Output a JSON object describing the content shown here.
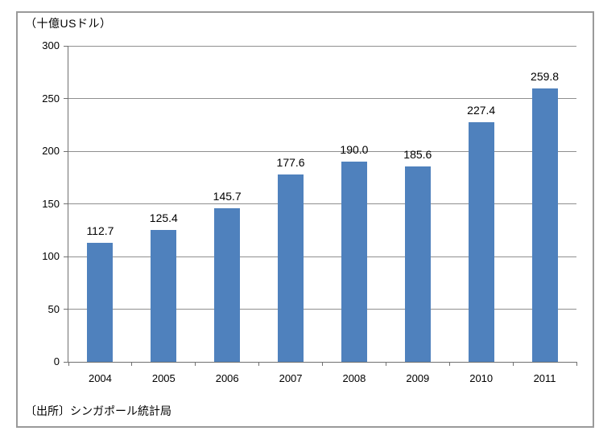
{
  "chart_data": {
    "type": "bar",
    "title": "",
    "unit_label": "（十億USドル）",
    "source": "〔出所〕シンガポール統計局",
    "categories": [
      "2004",
      "2005",
      "2006",
      "2007",
      "2008",
      "2009",
      "2010",
      "2011"
    ],
    "values": [
      112.7,
      125.4,
      145.7,
      177.6,
      190.0,
      185.6,
      227.4,
      259.8
    ],
    "data_labels": [
      "112.7",
      "125.4",
      "145.7",
      "177.6",
      "190.0",
      "185.6",
      "227.4",
      "259.8"
    ],
    "ylim": [
      0,
      300
    ],
    "ytick_interval": 50,
    "yticks": [
      0,
      50,
      100,
      150,
      200,
      250,
      300
    ],
    "grid": true,
    "legend": "none",
    "colors": {
      "bar": "#4f81bd",
      "gridline": "#8f8f8f",
      "axis": "#707070",
      "frame_border": "#9a9a9a",
      "text": "#000000"
    }
  }
}
